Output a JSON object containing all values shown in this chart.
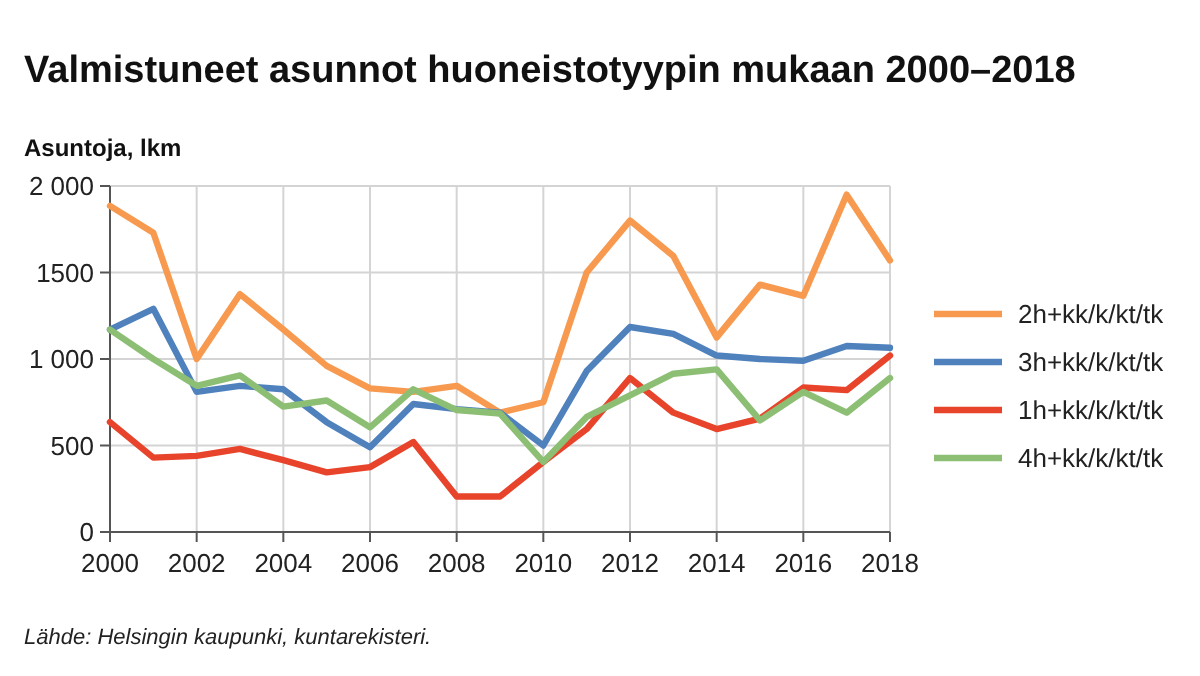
{
  "chart_data": {
    "type": "line",
    "title": "Valmistuneet asunnot huoneistotyypin mukaan 2000–2018",
    "ylabel": "Asuntoja, lkm",
    "x": [
      2000,
      2001,
      2002,
      2003,
      2004,
      2005,
      2006,
      2007,
      2008,
      2009,
      2010,
      2011,
      2012,
      2013,
      2014,
      2015,
      2016,
      2017,
      2018
    ],
    "series": [
      {
        "name": "2h+kk/k/kt/tk",
        "color": "#f79a4f",
        "values": [
          1885,
          1730,
          1000,
          1375,
          1170,
          960,
          830,
          810,
          845,
          690,
          750,
          1500,
          1800,
          1595,
          1125,
          1430,
          1365,
          1950,
          1570
        ]
      },
      {
        "name": "3h+kk/k/kt/tk",
        "color": "#4f81bd",
        "values": [
          1170,
          1290,
          810,
          845,
          825,
          635,
          490,
          740,
          710,
          690,
          500,
          930,
          1185,
          1145,
          1020,
          1000,
          990,
          1075,
          1065
        ]
      },
      {
        "name": "1h+kk/k/kt/tk",
        "color": "#e8442b",
        "values": [
          635,
          430,
          440,
          480,
          415,
          345,
          375,
          520,
          205,
          205,
          405,
          595,
          890,
          690,
          595,
          655,
          835,
          820,
          1020
        ]
      },
      {
        "name": "4h+kk/k/kt/tk",
        "color": "#8cbf73",
        "values": [
          1170,
          1000,
          845,
          905,
          725,
          760,
          605,
          825,
          705,
          685,
          405,
          665,
          790,
          915,
          940,
          645,
          810,
          690,
          890
        ]
      }
    ],
    "xlim": [
      2000,
      2018
    ],
    "xticks": [
      2000,
      2002,
      2004,
      2006,
      2008,
      2010,
      2012,
      2014,
      2016,
      2018
    ],
    "ylim": [
      0,
      2000
    ],
    "yticks": [
      {
        "value": 0,
        "label": "0"
      },
      {
        "value": 500,
        "label": "500"
      },
      {
        "value": 1000,
        "label": "1 000"
      },
      {
        "value": 1500,
        "label": "1500"
      },
      {
        "value": 2000,
        "label": "2 000"
      }
    ],
    "grid": true,
    "legend": "right",
    "line_style": "solid",
    "marker": "none",
    "annotations": [
      "Lähde: Helsingin kaupunki, kuntarekisteri."
    ]
  }
}
